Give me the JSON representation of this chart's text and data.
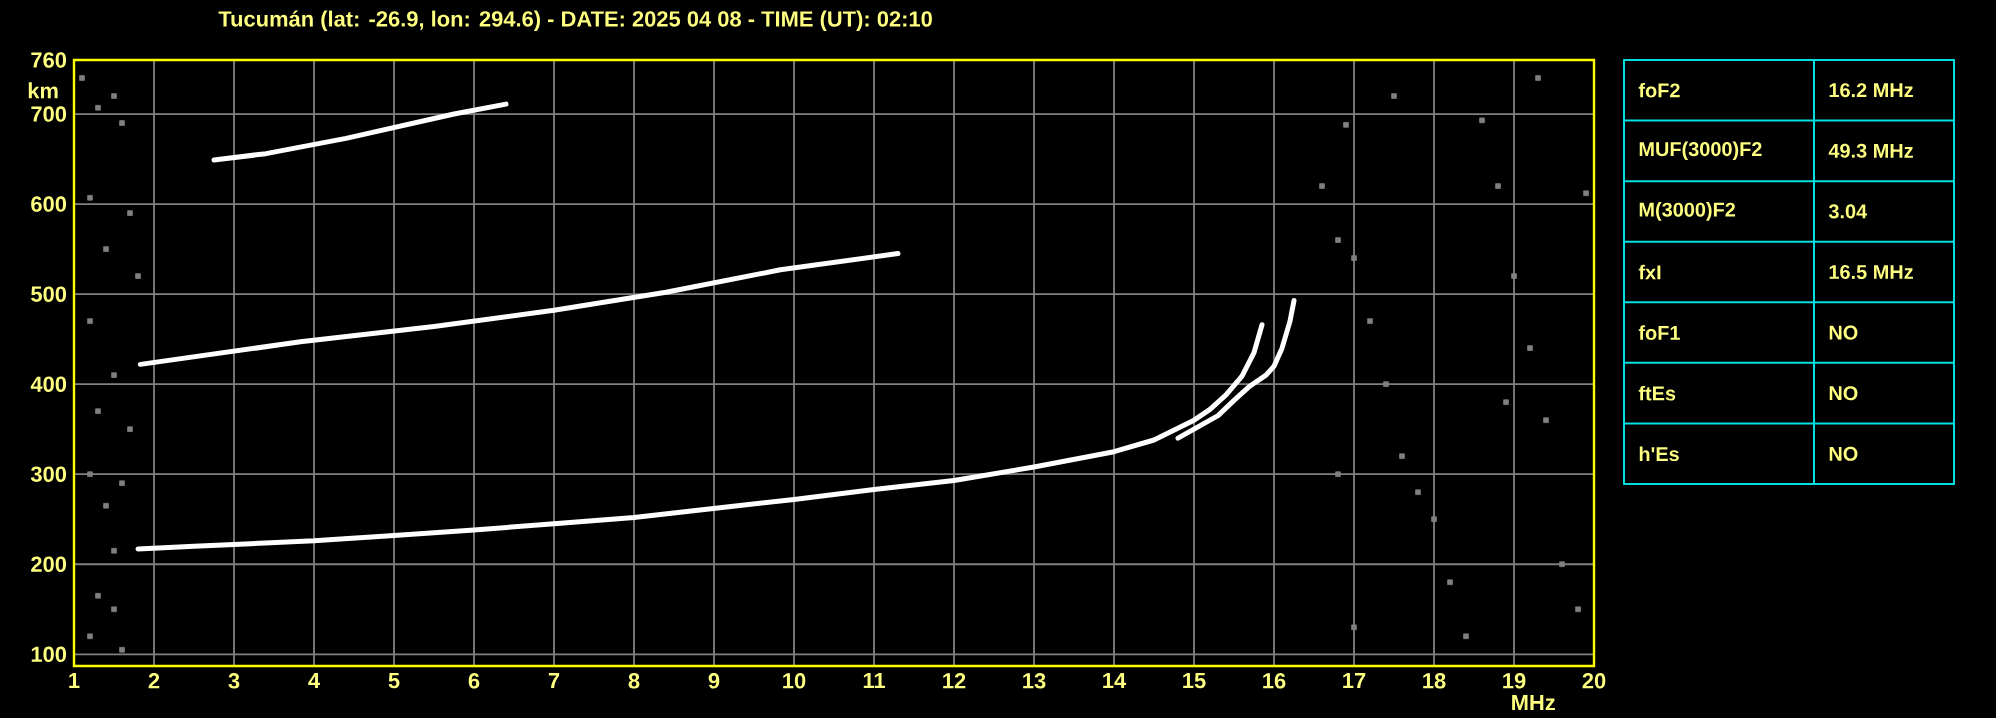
{
  "chart_data": [
    {
      "type": "line",
      "title": "Tucumán (lat: -26.9, lon: 294.6) - DATE: 2025 04 08 - TIME (UT): 02:10",
      "xlabel": "MHz",
      "ylabel": "km",
      "xlim": [
        1,
        20
      ],
      "ylim": [
        87,
        760
      ],
      "xticks": [
        1,
        2,
        3,
        4,
        5,
        6,
        7,
        8,
        9,
        10,
        11,
        12,
        13,
        14,
        15,
        16,
        17,
        18,
        19,
        20
      ],
      "yticks": [
        100,
        200,
        300,
        400,
        500,
        600,
        700,
        760
      ],
      "grid": true,
      "marker": "none",
      "line_style": "solid",
      "series": [
        {
          "color": "#ffffff",
          "x": [
            1.8,
            2.5,
            3,
            4,
            5,
            6,
            7,
            8,
            9,
            10,
            11,
            12,
            13,
            14,
            14.5,
            15,
            15.2,
            15.4,
            15.6,
            15.75,
            15.85
          ],
          "values": [
            217,
            220,
            222,
            226,
            232,
            238,
            245,
            252,
            262,
            272,
            283,
            293,
            308,
            325,
            338,
            360,
            372,
            388,
            409,
            435,
            466
          ]
        },
        {
          "color": "#ffffff",
          "x": [
            14.8,
            15,
            15.3,
            15.5,
            15.7,
            15.9,
            16,
            16.1,
            16.2,
            16.25
          ],
          "values": [
            340,
            350,
            365,
            382,
            398,
            410,
            420,
            440,
            470,
            493
          ]
        },
        {
          "color": "#ffffff",
          "x": [
            1.83,
            3.83,
            5.5,
            7,
            8.4,
            9.83,
            11.3
          ],
          "values": [
            422,
            447,
            464,
            482,
            502,
            527,
            545
          ]
        },
        {
          "color": "#ffffff",
          "x": [
            2.75,
            3.4,
            4.4,
            5.75,
            6.4
          ],
          "values": [
            649,
            656,
            673,
            700,
            711
          ]
        },
        {
          "type": "scatter",
          "marker": "square",
          "color": "#808080",
          "x": [
            1.1,
            1.5,
            1.3,
            1.6,
            1.2,
            1.7,
            1.4,
            1.8,
            1.2,
            1.5,
            1.3,
            1.7,
            1.2,
            1.6,
            1.4,
            1.5,
            1.3,
            1.5,
            1.2,
            1.6,
            16.6,
            16.8,
            17,
            17.2,
            17.4,
            17.6,
            17.8,
            18,
            18.2,
            18.4,
            18.6,
            18.8,
            19,
            19.2,
            19.4,
            19.6,
            19.8,
            19.3,
            17,
            16.8,
            18.9,
            19.9,
            17.5,
            16.9
          ],
          "values": [
            740,
            720,
            707,
            690,
            607,
            590,
            550,
            520,
            470,
            410,
            370,
            350,
            300,
            290,
            265,
            215,
            165,
            150,
            120,
            105,
            620,
            560,
            540,
            470,
            400,
            320,
            280,
            250,
            180,
            120,
            693,
            620,
            520,
            440,
            360,
            200,
            150,
            740,
            130,
            300,
            380,
            612,
            720,
            688
          ]
        }
      ]
    },
    {
      "type": "other",
      "annotations": [
        "foF2",
        "16.2 MHz",
        "MUF(3000)F2",
        "49.3 MHz",
        "M(3000)F2",
        "3.04",
        "fxI",
        "16.5 MHz",
        "foF1",
        "NO",
        "ftEs",
        "NO",
        "h'Es",
        "NO"
      ]
    }
  ]
}
